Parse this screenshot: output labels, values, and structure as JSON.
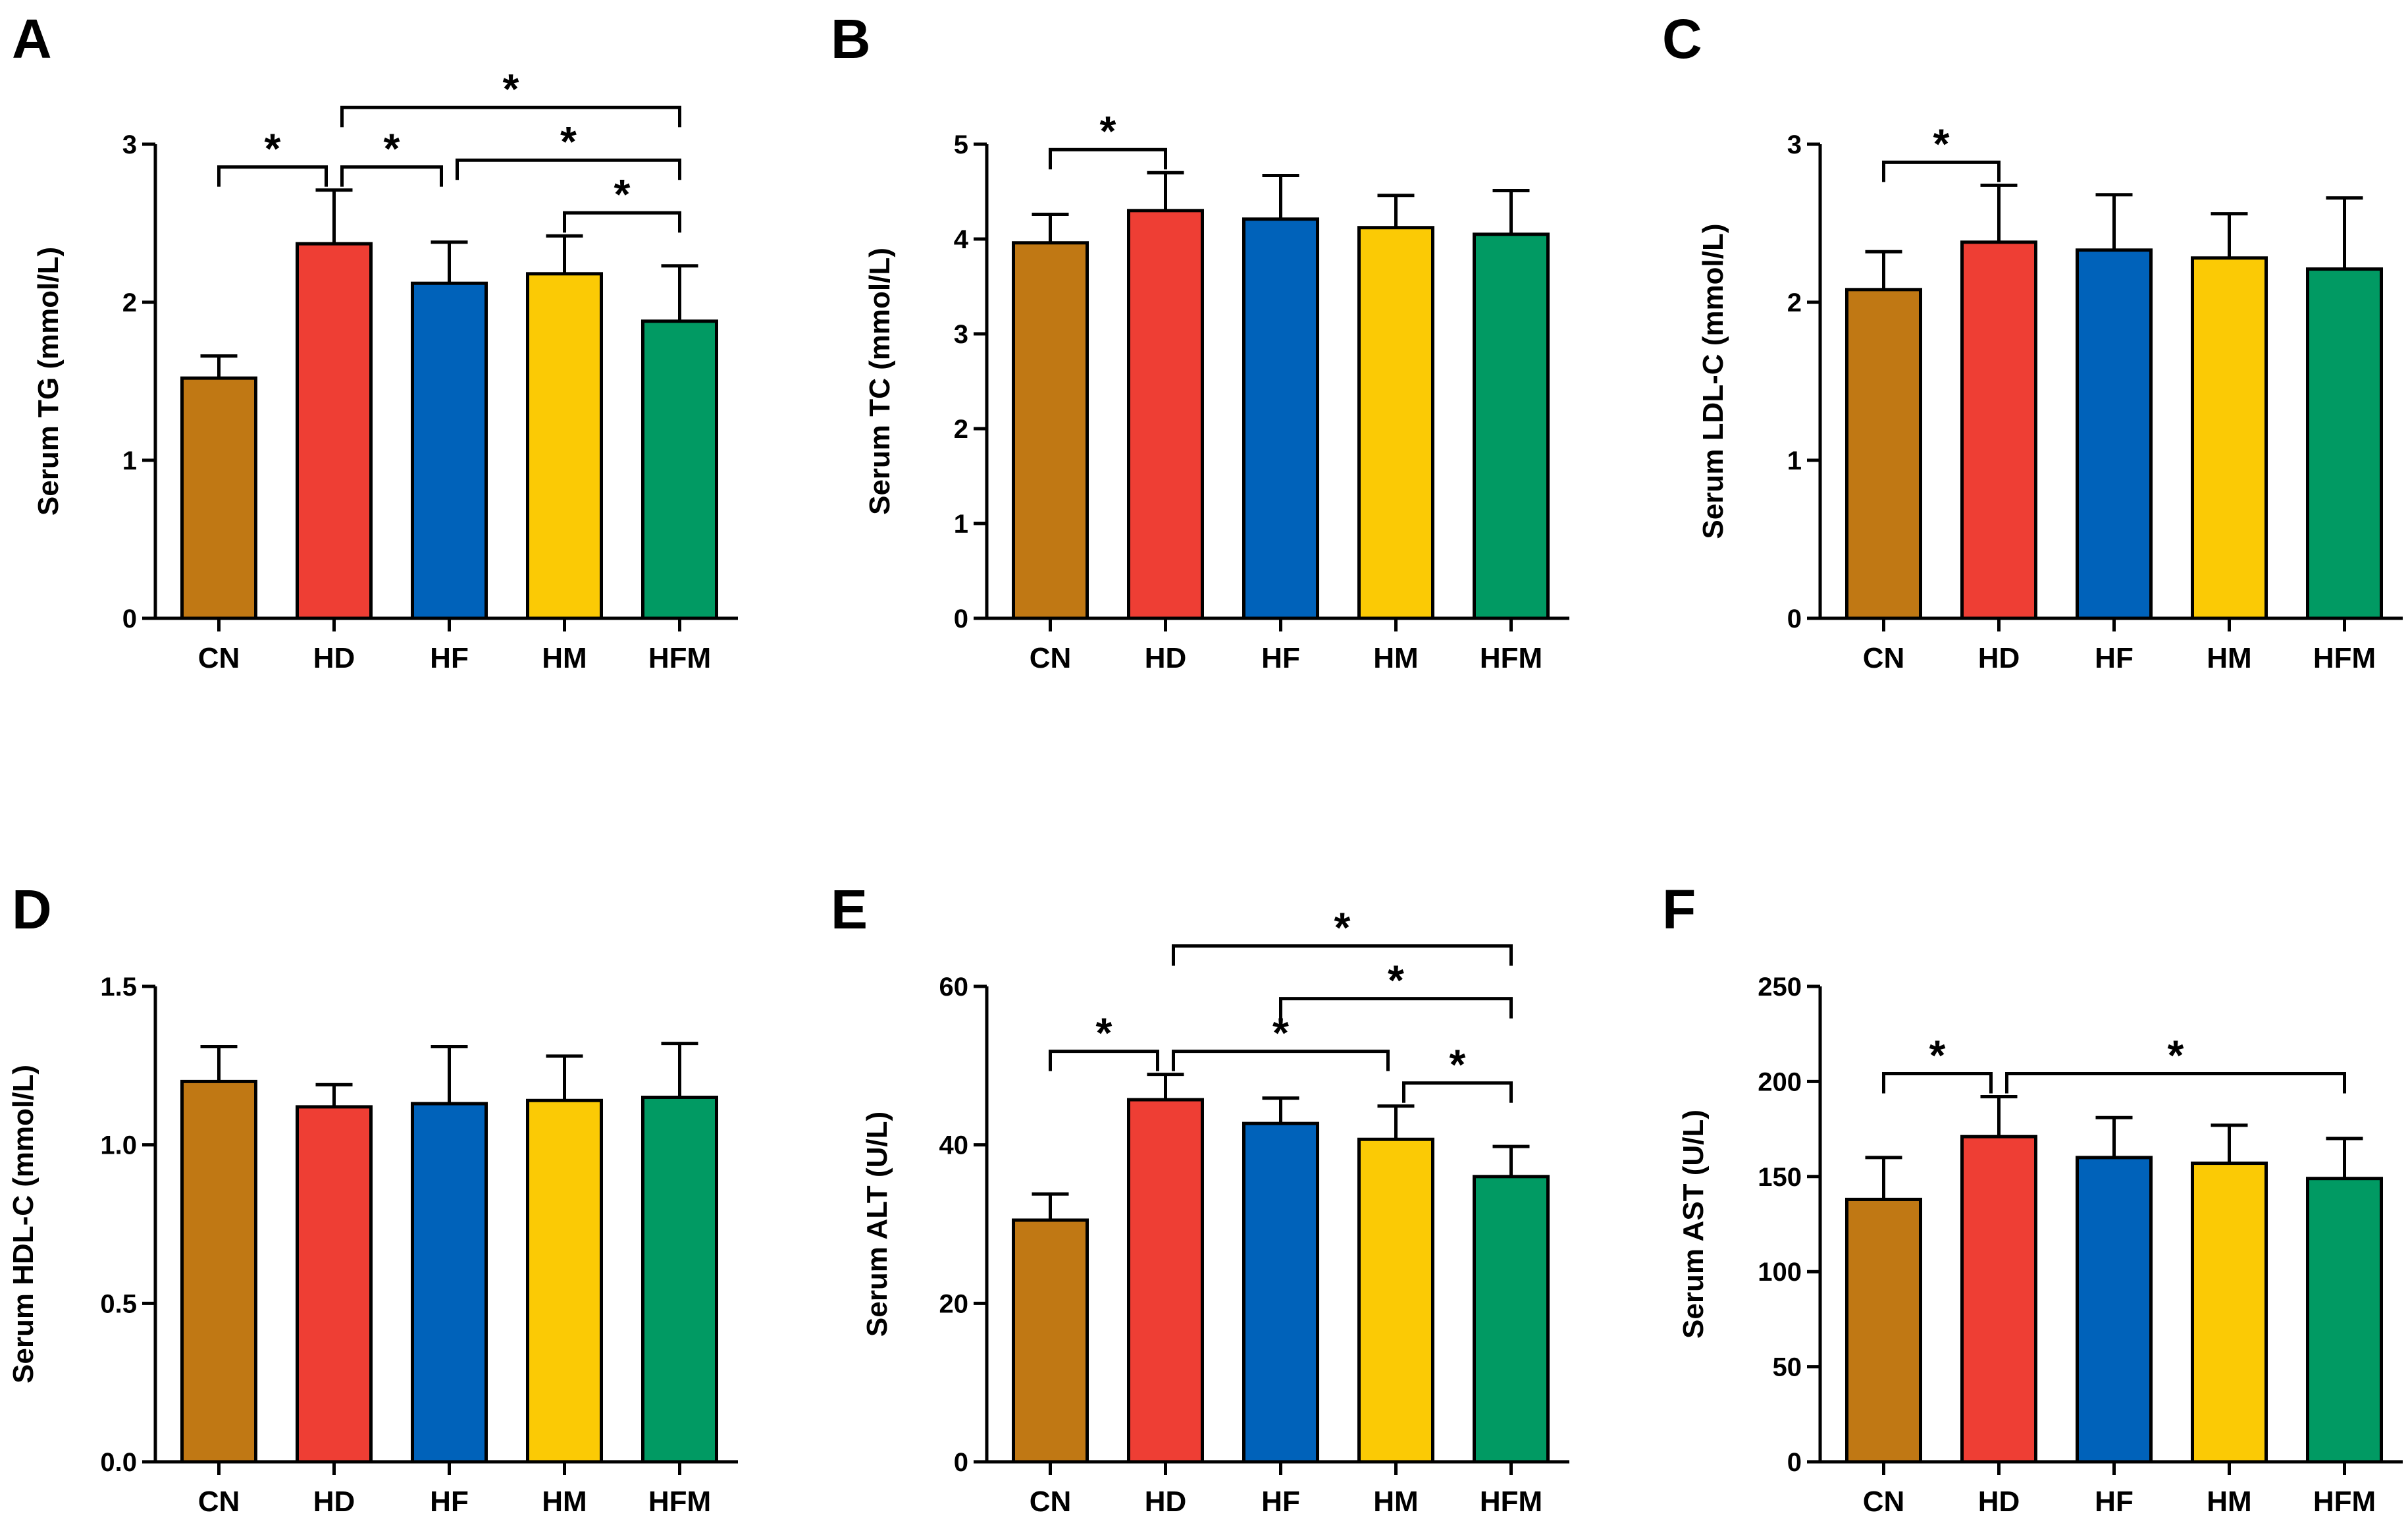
{
  "colors": {
    "CN": "#C07814",
    "HD": "#EE3E34",
    "HF": "#0062BA",
    "HM": "#FBCA05",
    "HFM": "#019A63"
  },
  "chart_data": [
    {
      "panel": "A",
      "type": "bar",
      "ylabel": "Serum TG (mmol/L)",
      "categories": [
        "CN",
        "HD",
        "HF",
        "HM",
        "HFM"
      ],
      "values": [
        1.52,
        2.37,
        2.12,
        2.18,
        1.88
      ],
      "errors": [
        0.14,
        0.34,
        0.26,
        0.24,
        0.35
      ],
      "ylim": [
        0,
        3
      ],
      "yticks": [
        0,
        1,
        2,
        3
      ],
      "ytick_labels": [
        "0",
        "1",
        "2",
        "3"
      ],
      "significance": [
        {
          "from": "CN",
          "to": "HD",
          "label": "*"
        },
        {
          "from": "HD",
          "to": "HF",
          "label": "*"
        },
        {
          "from": "HD",
          "to": "HFM",
          "label": "*"
        },
        {
          "from": "HF",
          "to": "HFM",
          "label": "*"
        },
        {
          "from": "HM",
          "to": "HFM",
          "label": "*"
        }
      ]
    },
    {
      "panel": "B",
      "type": "bar",
      "ylabel": "Serum TC (mmol/L)",
      "categories": [
        "CN",
        "HD",
        "HF",
        "HM",
        "HFM"
      ],
      "values": [
        3.96,
        4.3,
        4.21,
        4.12,
        4.05
      ],
      "errors": [
        0.3,
        0.4,
        0.46,
        0.34,
        0.46
      ],
      "ylim": [
        0,
        5
      ],
      "yticks": [
        0,
        1,
        2,
        3,
        4,
        5
      ],
      "ytick_labels": [
        "0",
        "1",
        "2",
        "3",
        "4",
        "5"
      ],
      "significance": [
        {
          "from": "CN",
          "to": "HD",
          "label": "*"
        }
      ]
    },
    {
      "panel": "C",
      "type": "bar",
      "ylabel": "Serum LDL-C (mmol/L)",
      "categories": [
        "CN",
        "HD",
        "HF",
        "HM",
        "HFM"
      ],
      "values": [
        2.08,
        2.38,
        2.33,
        2.28,
        2.21
      ],
      "errors": [
        0.24,
        0.36,
        0.35,
        0.28,
        0.45
      ],
      "ylim": [
        0,
        3
      ],
      "yticks": [
        0,
        1,
        2,
        3
      ],
      "ytick_labels": [
        "0",
        "1",
        "2",
        "3"
      ],
      "significance": [
        {
          "from": "CN",
          "to": "HD",
          "label": "*"
        }
      ]
    },
    {
      "panel": "D",
      "type": "bar",
      "ylabel": "Serum HDL-C (mmol/L)",
      "categories": [
        "CN",
        "HD",
        "HF",
        "HM",
        "HFM"
      ],
      "values": [
        1.2,
        1.12,
        1.13,
        1.14,
        1.15
      ],
      "errors": [
        0.11,
        0.07,
        0.18,
        0.14,
        0.17
      ],
      "ylim": [
        0,
        1.5
      ],
      "yticks": [
        0,
        0.5,
        1.0,
        1.5
      ],
      "ytick_labels": [
        "0.0",
        "0.5",
        "1.0",
        "1.5"
      ],
      "significance": []
    },
    {
      "panel": "E",
      "type": "bar",
      "ylabel": "Serum ALT (U/L)",
      "categories": [
        "CN",
        "HD",
        "HF",
        "HM",
        "HFM"
      ],
      "values": [
        30.5,
        45.7,
        42.7,
        40.7,
        36.0
      ],
      "errors": [
        3.3,
        3.2,
        3.2,
        4.2,
        3.8
      ],
      "ylim": [
        0,
        60
      ],
      "yticks": [
        0,
        20,
        40,
        60
      ],
      "ytick_labels": [
        "0",
        "20",
        "40",
        "60"
      ],
      "significance": [
        {
          "from": "CN",
          "to": "HD",
          "label": "*"
        },
        {
          "from": "HD",
          "to": "HM",
          "label": "*"
        },
        {
          "from": "HM",
          "to": "HFM",
          "label": "*"
        },
        {
          "from": "HF",
          "to": "HFM",
          "label": "*"
        },
        {
          "from": "HD",
          "to": "HFM",
          "label": "*"
        }
      ]
    },
    {
      "panel": "F",
      "type": "bar",
      "ylabel": "Serum AST (U/L)",
      "categories": [
        "CN",
        "HD",
        "HF",
        "HM",
        "HFM"
      ],
      "values": [
        138,
        171,
        160,
        157,
        149
      ],
      "errors": [
        22,
        21,
        21,
        20,
        21
      ],
      "ylim": [
        0,
        250
      ],
      "yticks": [
        0,
        50,
        100,
        150,
        200,
        250
      ],
      "ytick_labels": [
        "0",
        "50",
        "100",
        "150",
        "200",
        "250"
      ],
      "significance": [
        {
          "from": "CN",
          "to": "HD",
          "label": "*"
        },
        {
          "from": "HD",
          "to": "HFM",
          "label": "*"
        }
      ]
    }
  ]
}
